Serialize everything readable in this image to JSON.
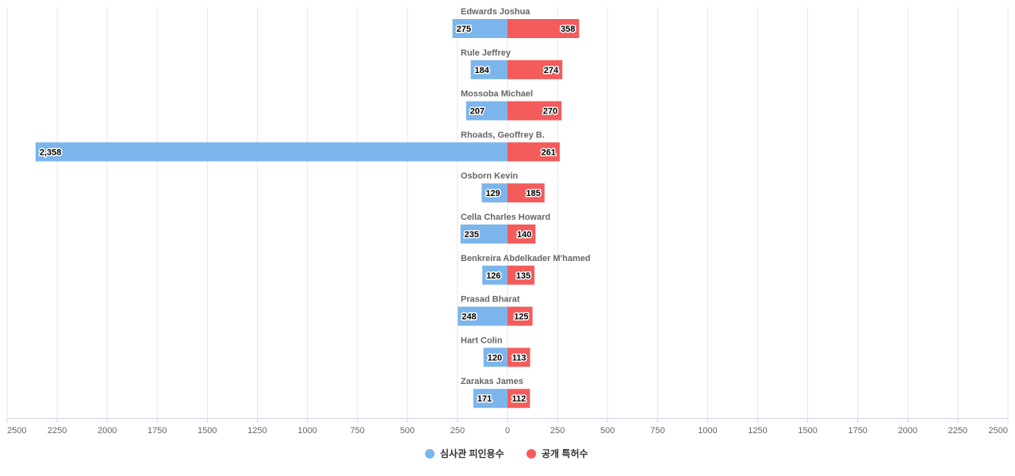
{
  "chart_data": {
    "type": "bar",
    "orientation": "horizontal-diverging",
    "categories": [
      "Edwards Joshua",
      "Rule Jeffrey",
      "Mossoba Michael",
      "Rhoads, Geoffrey B.",
      "Osborn Kevin",
      "Cella Charles Howard",
      "Benkreira Abdelkader M'hamed",
      "Prasad Bharat",
      "Hart Colin",
      "Zarakas James"
    ],
    "series": [
      {
        "name": "심사관 피인용수",
        "color": "#7cb5ec",
        "direction": "left",
        "values": [
          275,
          184,
          207,
          2358,
          129,
          235,
          126,
          248,
          120,
          171
        ],
        "labels": [
          "275",
          "184",
          "207",
          "2,358",
          "129",
          "235",
          "126",
          "248",
          "120",
          "171"
        ]
      },
      {
        "name": "공개 특허수",
        "color": "#f45b5b",
        "direction": "right",
        "values": [
          358,
          274,
          270,
          261,
          185,
          140,
          135,
          125,
          113,
          112
        ],
        "labels": [
          "358",
          "274",
          "270",
          "261",
          "185",
          "140",
          "135",
          "125",
          "113",
          "112"
        ]
      }
    ],
    "xlim": [
      -2500,
      2500
    ],
    "ticks": [
      -2500,
      -2250,
      -2000,
      -1750,
      -1500,
      -1250,
      -1000,
      -750,
      -500,
      -250,
      0,
      250,
      500,
      750,
      1000,
      1250,
      1500,
      1750,
      2000,
      2250,
      2500
    ],
    "tick_labels": [
      "2500",
      "2250",
      "2000",
      "1750",
      "1500",
      "1250",
      "1000",
      "750",
      "500",
      "250",
      "0",
      "250",
      "500",
      "750",
      "1000",
      "1250",
      "1500",
      "1750",
      "2000",
      "2250",
      "2500"
    ],
    "grid": true,
    "legend_position": "bottom-center",
    "colors": {
      "grid": "#e6e6e6",
      "axis": "#ccd6eb",
      "text": "#666666"
    }
  }
}
